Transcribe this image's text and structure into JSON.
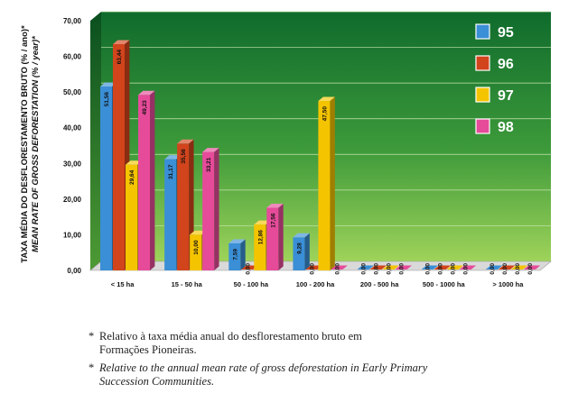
{
  "chart_data": {
    "type": "bar",
    "ylabel": "TAXA MÉDIA DO DESFLORESTAMENTO BRUTO (% / ano)*",
    "ylabel_en": "MEAN RATE OF GROSS DEFORESTATION (% / year)*",
    "ylim": [
      0,
      70
    ],
    "yticks": [
      "0,00",
      "10,00",
      "20,00",
      "30,00",
      "40,00",
      "50,00",
      "60,00",
      "70,00"
    ],
    "ytick_values": [
      0,
      10,
      20,
      30,
      40,
      50,
      60,
      70
    ],
    "categories": [
      "< 15 ha",
      "15 - 50 ha",
      "50 - 100 ha",
      "100 - 200 ha",
      "200 - 500 ha",
      "500 - 1000 ha",
      "> 1000 ha"
    ],
    "series": [
      {
        "name": "95",
        "color": "#3a8fd6",
        "values": [
          51.56,
          31.17,
          7.59,
          9.28,
          0,
          0,
          0
        ],
        "labels": [
          "51,56",
          "31,17",
          "7,59",
          "9,28",
          "0,00",
          "0,00",
          "0,00"
        ]
      },
      {
        "name": "96",
        "color": "#d2441c",
        "values": [
          63.44,
          35.56,
          0,
          0,
          0,
          0,
          0
        ],
        "labels": [
          "63,44",
          "35,56",
          "0,00",
          "0,00",
          "0,00",
          "0,00",
          "0,00"
        ]
      },
      {
        "name": "97",
        "color": "#f5c400",
        "values": [
          29.64,
          10.0,
          12.86,
          47.5,
          0,
          0,
          0
        ],
        "labels": [
          "29,64",
          "10,00",
          "12,86",
          "47,50",
          "0,00",
          "0,00",
          "0,00"
        ]
      },
      {
        "name": "98",
        "color": "#e64b9a",
        "values": [
          49.23,
          33.21,
          17.56,
          0,
          0,
          0,
          0
        ],
        "labels": [
          "49,23",
          "33,21",
          "17,56",
          "0,00",
          "0,00",
          "0,00",
          "0,00"
        ]
      }
    ]
  },
  "footnotes": {
    "pt_line1": "Relativo à taxa média anual do desflorestamento bruto em",
    "pt_line2": "Formações Pioneiras.",
    "en_line1": "Relative to the annual mean rate of gross deforestation in Early Primary",
    "en_line2": "Succession Communities.",
    "asterisk": "*"
  }
}
